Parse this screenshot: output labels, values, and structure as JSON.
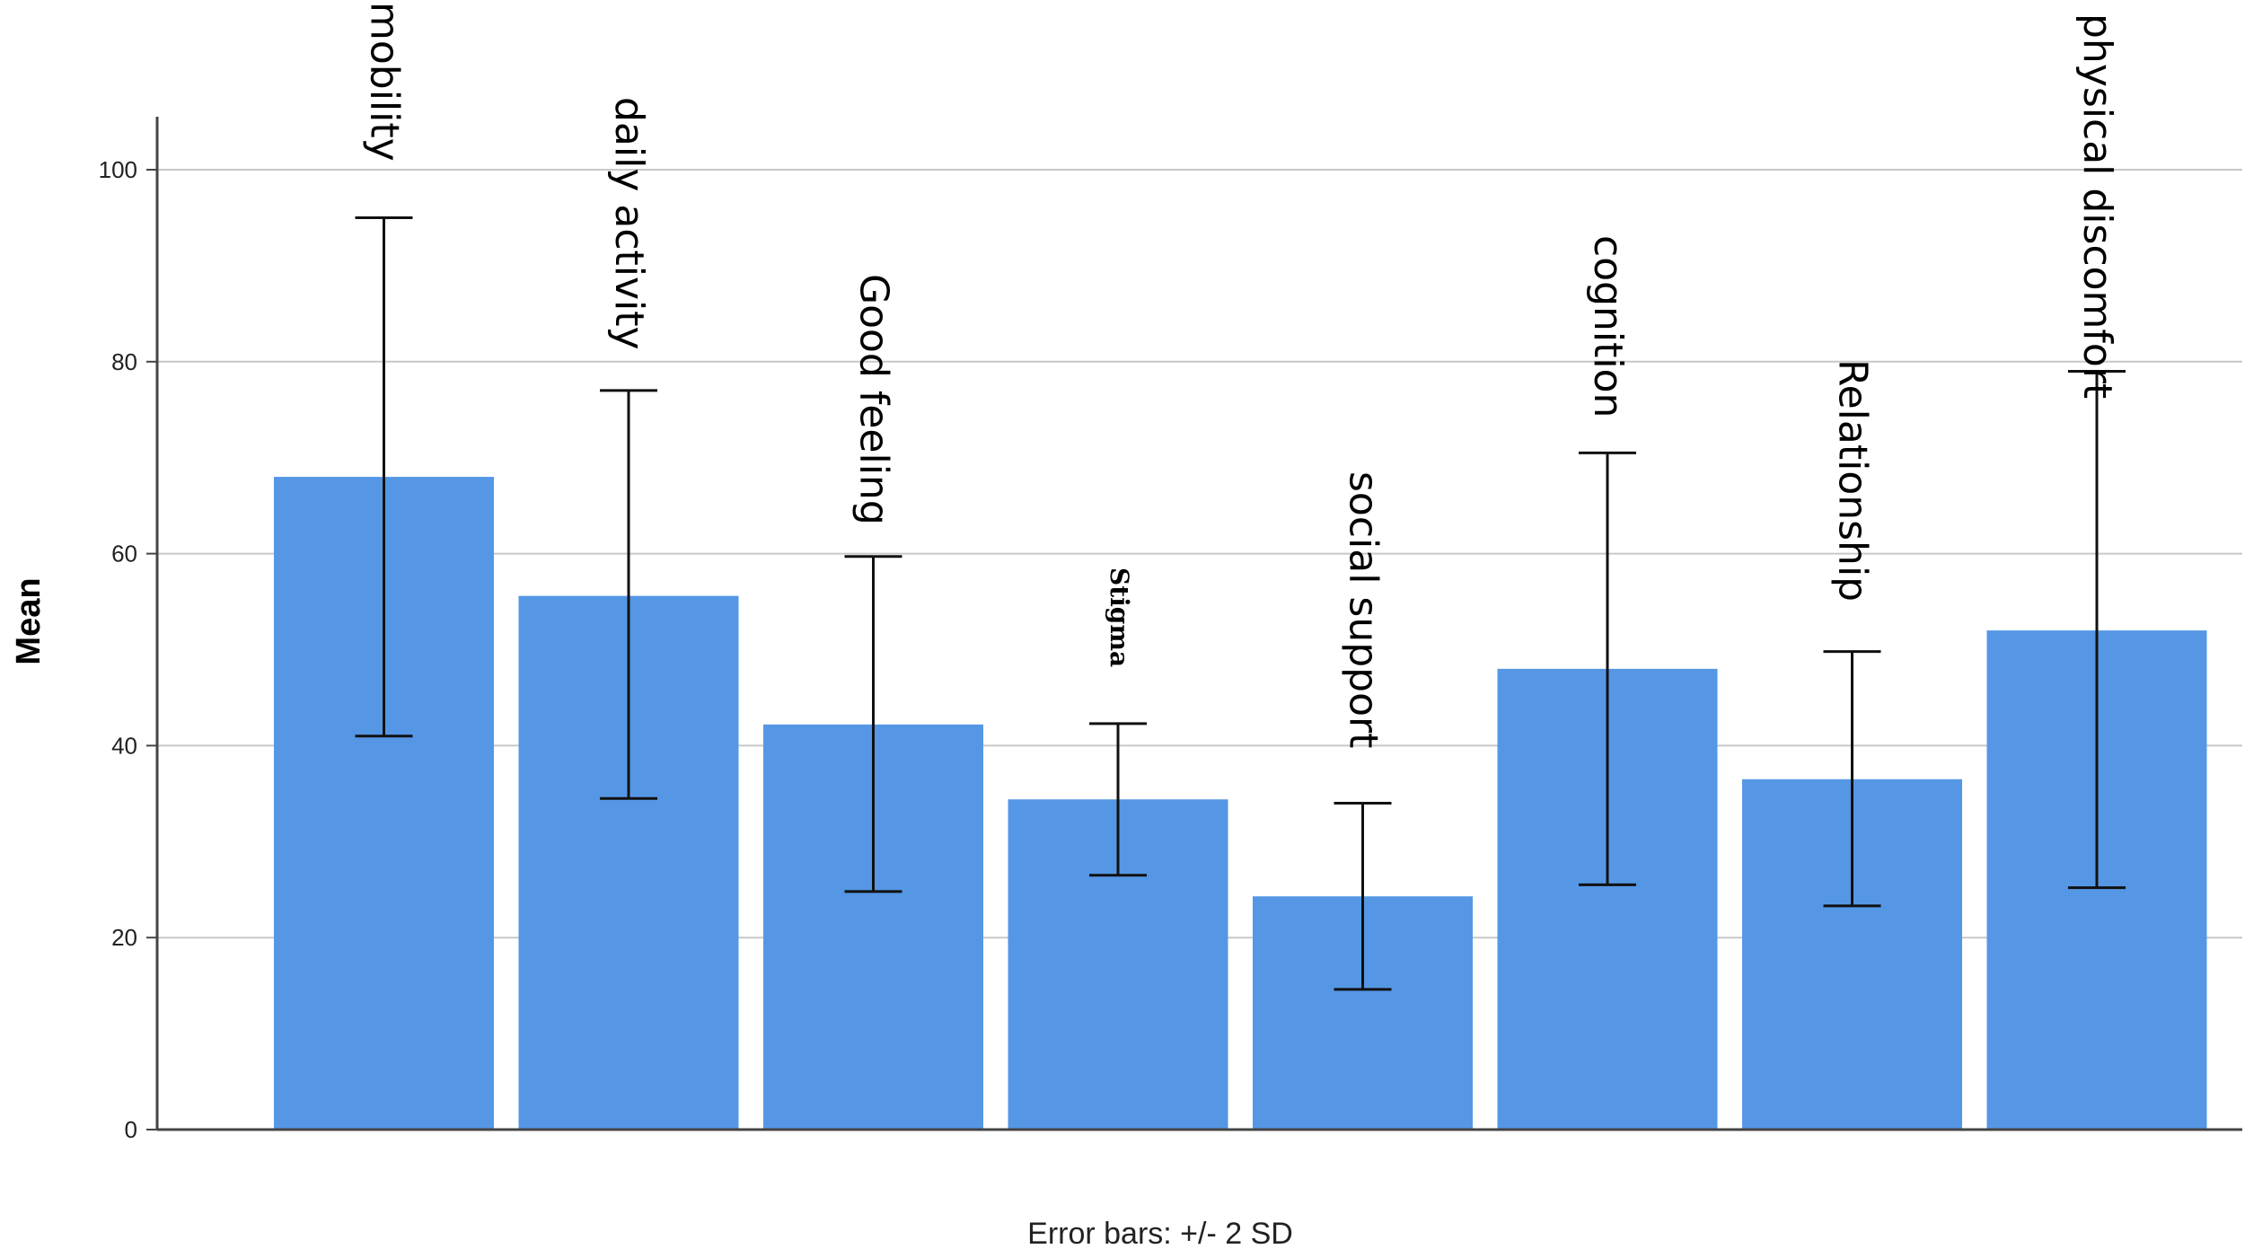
{
  "chart_data": {
    "type": "bar",
    "categories": [
      "mobility",
      "daily activity",
      "Good feeling",
      "Stigma",
      "social support",
      "cognition",
      "Relationship",
      "physical discomfort"
    ],
    "values": [
      68,
      55.6,
      42.2,
      34.4,
      24.3,
      48,
      36.5,
      52
    ],
    "error_low": [
      41,
      34.5,
      24.8,
      26.5,
      14.6,
      25.5,
      23.3,
      25.2
    ],
    "error_high": [
      95,
      77,
      59.7,
      42.3,
      34,
      70.5,
      49.8,
      79
    ],
    "ylabel": "Mean",
    "xlabel": "",
    "ylim": [
      0,
      100
    ],
    "yticks": [
      0,
      20,
      40,
      60,
      80,
      100
    ],
    "grid": true,
    "footnote": "Error bars:  +/- 2 SD",
    "colors": {
      "bar": "#5597e5",
      "grid": "#c8c8c8",
      "axis": "#444444",
      "error": "#111111"
    }
  }
}
